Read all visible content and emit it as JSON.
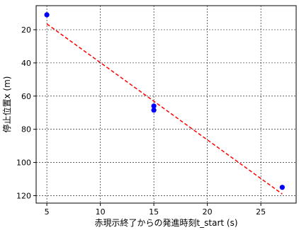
{
  "chart_data": {
    "type": "scatter",
    "xlabel": "赤現示終了からの発進時刻t_start (s)",
    "ylabel": "停止位置x (m)",
    "xlim": [
      4,
      28.3
    ],
    "ylim": [
      124.5,
      5.5
    ],
    "y_inverted": true,
    "grid": true,
    "x_ticks": [
      5,
      10,
      15,
      20,
      25
    ],
    "y_ticks": [
      20,
      40,
      60,
      80,
      100,
      120
    ],
    "points": [
      {
        "x": 5,
        "y": 11
      },
      {
        "x": 15,
        "y": 66
      },
      {
        "x": 15,
        "y": 68.5
      },
      {
        "x": 27,
        "y": 115
      }
    ],
    "fit_line": {
      "x": [
        5,
        27
      ],
      "y": [
        16.5,
        119
      ]
    },
    "point_color": "#0000ff",
    "line_color": "#ff0000"
  }
}
